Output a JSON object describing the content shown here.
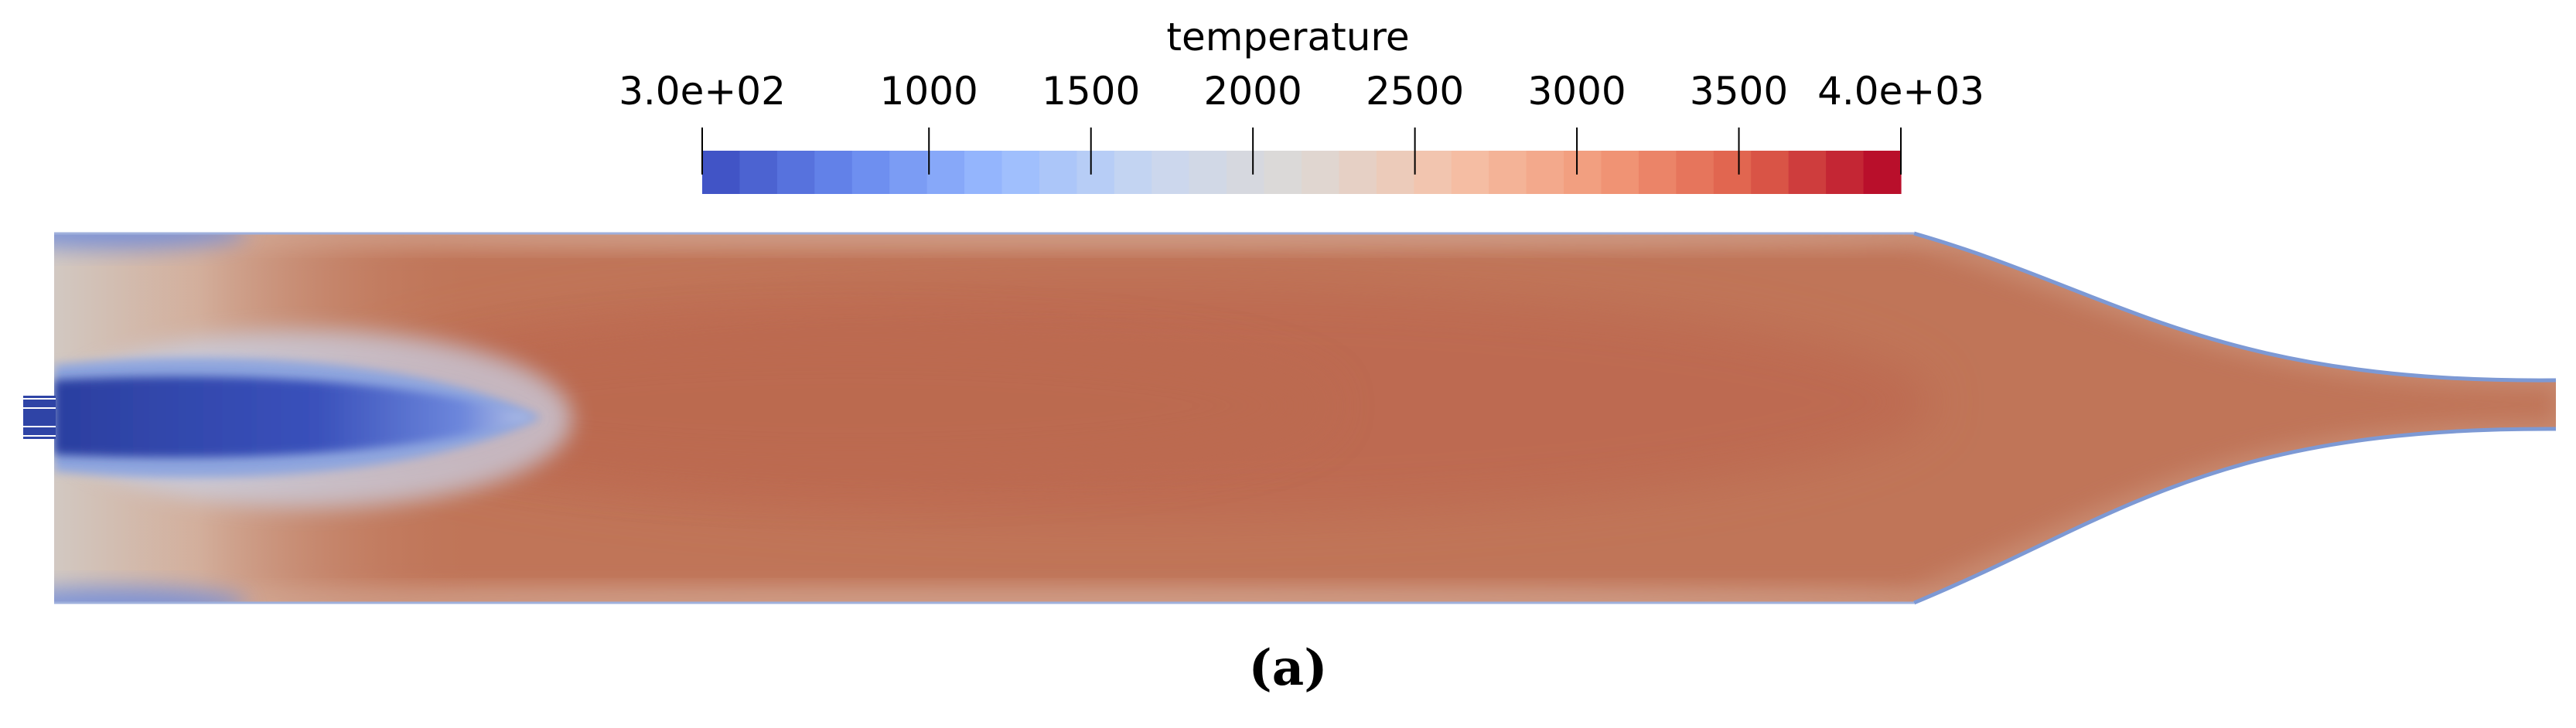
{
  "colorbar": {
    "title": "temperature",
    "min": 300,
    "max": 4000,
    "ticks": [
      {
        "value": 300,
        "label": "3.0e+02"
      },
      {
        "value": 1000,
        "label": "1000"
      },
      {
        "value": 1500,
        "label": "1500"
      },
      {
        "value": 2000,
        "label": "2000"
      },
      {
        "value": 2500,
        "label": "2500"
      },
      {
        "value": 3000,
        "label": "3000"
      },
      {
        "value": 3500,
        "label": "3500"
      },
      {
        "value": 4000,
        "label": "4.0e+03"
      }
    ],
    "colormap": [
      "#3b4cc0",
      "#6889ee",
      "#9abbff",
      "#c9d7f0",
      "#ddd9d5",
      "#f5c2a9",
      "#f29a7a",
      "#de5f4a",
      "#b40426"
    ],
    "bins": 32
  },
  "panel_label": "(a)",
  "field_colors": {
    "core": "#bd6a51",
    "body": "#c07558",
    "wall_layer": "#c88a70",
    "near_wall": "#d6ad9b",
    "inlet_zone": "#d2cac4",
    "jet_outer": "#8aa3df",
    "jet_mid": "#5a76d2",
    "jet_core": "#2f44a6",
    "wall_edge": "#7d99d4"
  }
}
